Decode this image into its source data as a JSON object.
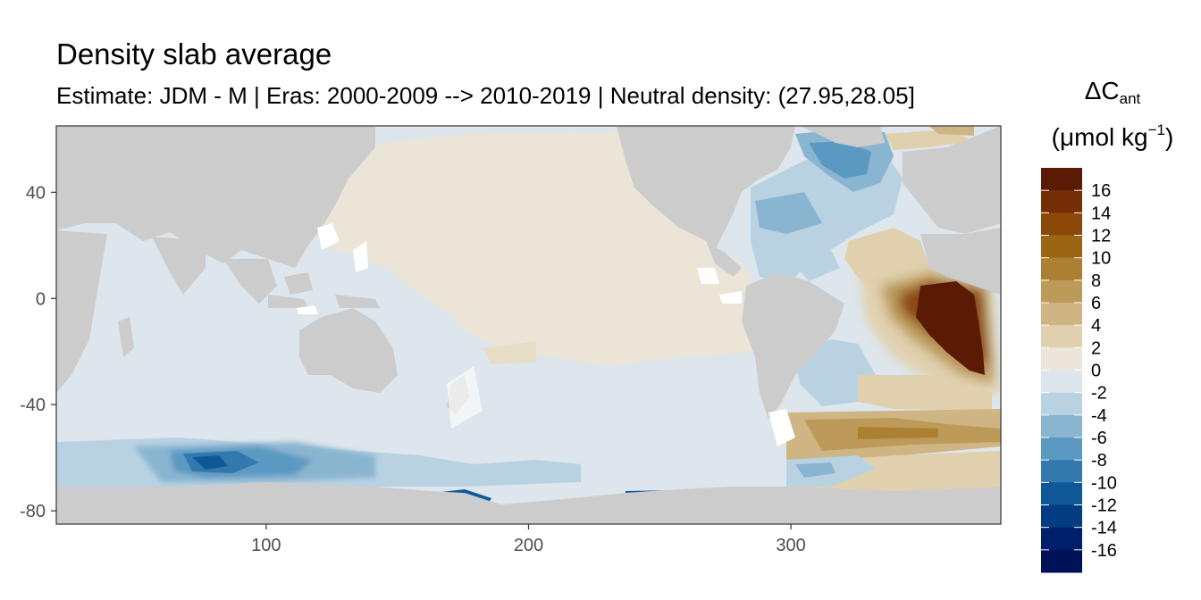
{
  "title": "Density slab average",
  "subtitle": "Estimate: JDM - M | Eras: 2000-2009 --> 2010-2019 | Neutral density: (27.95,28.05]",
  "legend": {
    "title_main": "ΔC",
    "title_sub": "ant",
    "unit_prefix": "(μmol kg",
    "unit_sup": "−1",
    "unit_suffix": ")",
    "labels": [
      "16",
      "14",
      "12",
      "10",
      "8",
      "6",
      "4",
      "2",
      "0",
      "-2",
      "-4",
      "-6",
      "-8",
      "-10",
      "-12",
      "-14",
      "-16"
    ],
    "colors": [
      "#5a1a03",
      "#742d05",
      "#8b4809",
      "#9c6514",
      "#ac8033",
      "#bc9a59",
      "#ceb583",
      "#e0d0ae",
      "#ece6da",
      "#dde6ec",
      "#b8d2e2",
      "#8ab5d1",
      "#5c99c2",
      "#3479ad",
      "#0f5898",
      "#023d82",
      "#001f6b",
      "#001257"
    ]
  },
  "axes": {
    "x_ticks": [
      100,
      200,
      300
    ],
    "y_ticks": [
      40,
      0,
      -40,
      -80
    ],
    "x_range": [
      20,
      380
    ],
    "y_range": [
      -85,
      65
    ]
  },
  "colors": {
    "land": "#cccccc",
    "frame": "#333333",
    "gap": "#ffffff"
  }
}
